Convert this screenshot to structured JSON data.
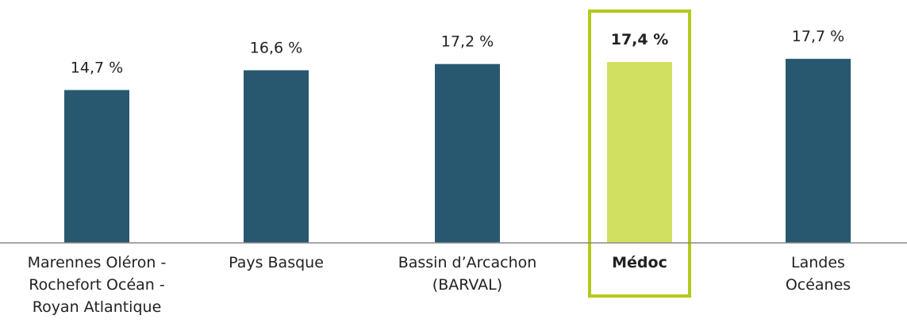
{
  "chart_data": {
    "type": "bar",
    "categories": [
      "Marennes Oléron -\nRochefort Océan -\nRoyan Atlantique",
      "Pays Basque",
      "Bassin d’Arcachon\n(BARVAL)",
      "Médoc",
      "Landes\nOcéanes"
    ],
    "values": [
      14.7,
      16.6,
      17.2,
      17.4,
      17.7
    ],
    "value_labels": [
      "14,7 %",
      "16,6 %",
      "17,2 %",
      "17,4 %",
      "17,7 %"
    ],
    "color": "#28586f",
    "highlight_color": "#d2e062",
    "highlight_border": "#b4c91c",
    "highlight_index": 3
  }
}
